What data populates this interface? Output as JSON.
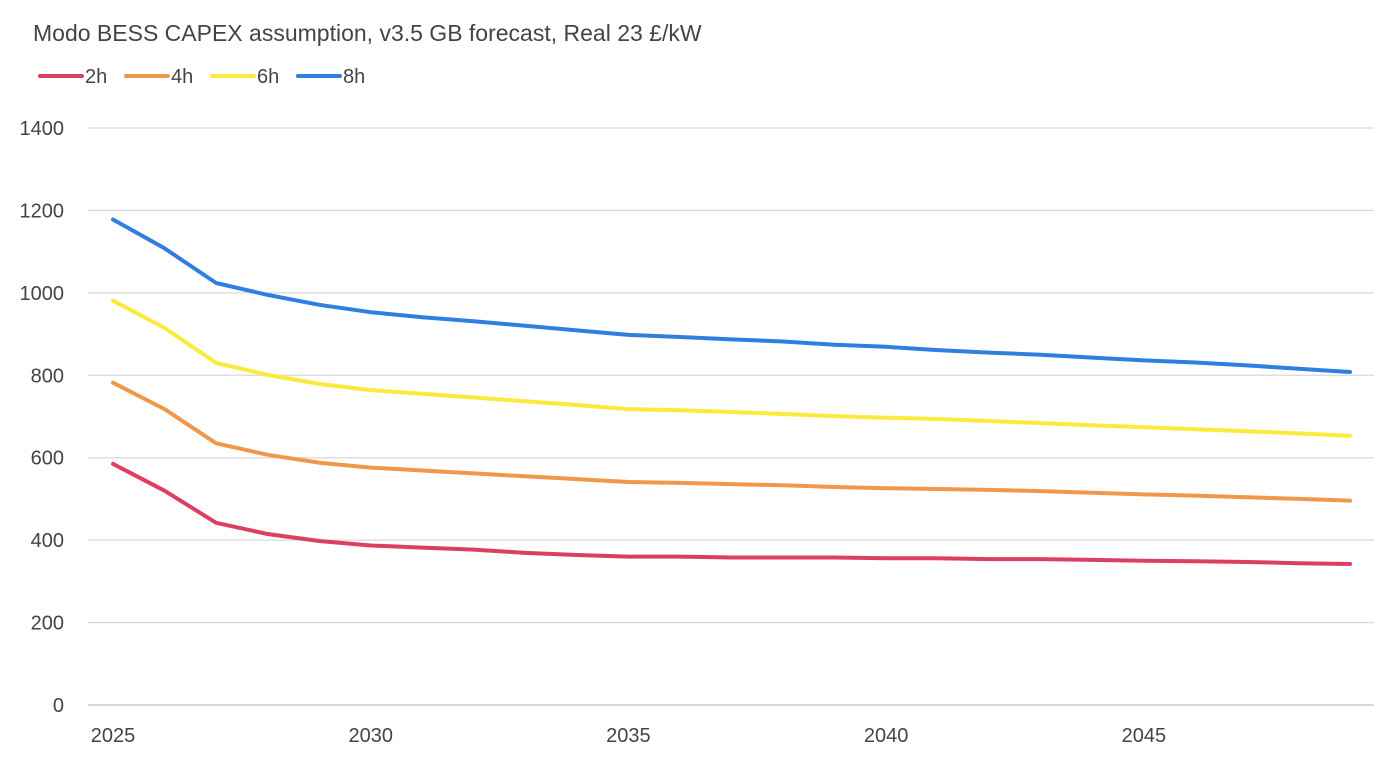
{
  "chart_data": {
    "type": "line",
    "title": "Modo BESS CAPEX assumption, v3.5 GB forecast, Real 23 £/kW",
    "xlabel": "",
    "ylabel": "",
    "x": [
      2025,
      2026,
      2027,
      2028,
      2029,
      2030,
      2031,
      2032,
      2033,
      2034,
      2035,
      2036,
      2037,
      2038,
      2039,
      2040,
      2041,
      2042,
      2043,
      2044,
      2045,
      2046,
      2047,
      2048,
      2049
    ],
    "x_tick_labels": [
      "2025",
      "2030",
      "2035",
      "2040",
      "2045"
    ],
    "y_tick_labels": [
      "0",
      "200",
      "400",
      "600",
      "800",
      "1000",
      "1200",
      "1400"
    ],
    "xlim": [
      2025,
      2049
    ],
    "ylim": [
      0,
      1400
    ],
    "grid": "horizontal",
    "legend_position": "top-left",
    "series": [
      {
        "name": "2h",
        "color": "#dc3f62",
        "values": [
          585,
          520,
          442,
          415,
          398,
          387,
          382,
          377,
          369,
          364,
          360,
          360,
          358,
          358,
          358,
          356,
          356,
          354,
          354,
          352,
          350,
          349,
          347,
          344,
          342
        ]
      },
      {
        "name": "4h",
        "color": "#f0984a",
        "values": [
          782,
          718,
          635,
          607,
          588,
          576,
          569,
          562,
          555,
          548,
          541,
          539,
          536,
          533,
          529,
          526,
          524,
          522,
          519,
          515,
          511,
          508,
          504,
          500,
          496
        ]
      },
      {
        "name": "6h",
        "color": "#fde93c",
        "values": [
          981,
          915,
          830,
          801,
          779,
          764,
          755,
          746,
          737,
          728,
          718,
          715,
          711,
          706,
          701,
          697,
          694,
          689,
          684,
          679,
          674,
          669,
          664,
          659,
          653
        ]
      },
      {
        "name": "8h",
        "color": "#2f7fe0",
        "values": [
          1178,
          1108,
          1024,
          995,
          971,
          953,
          941,
          931,
          920,
          909,
          898,
          893,
          887,
          882,
          874,
          869,
          861,
          855,
          850,
          843,
          836,
          831,
          824,
          816,
          808
        ]
      }
    ]
  }
}
